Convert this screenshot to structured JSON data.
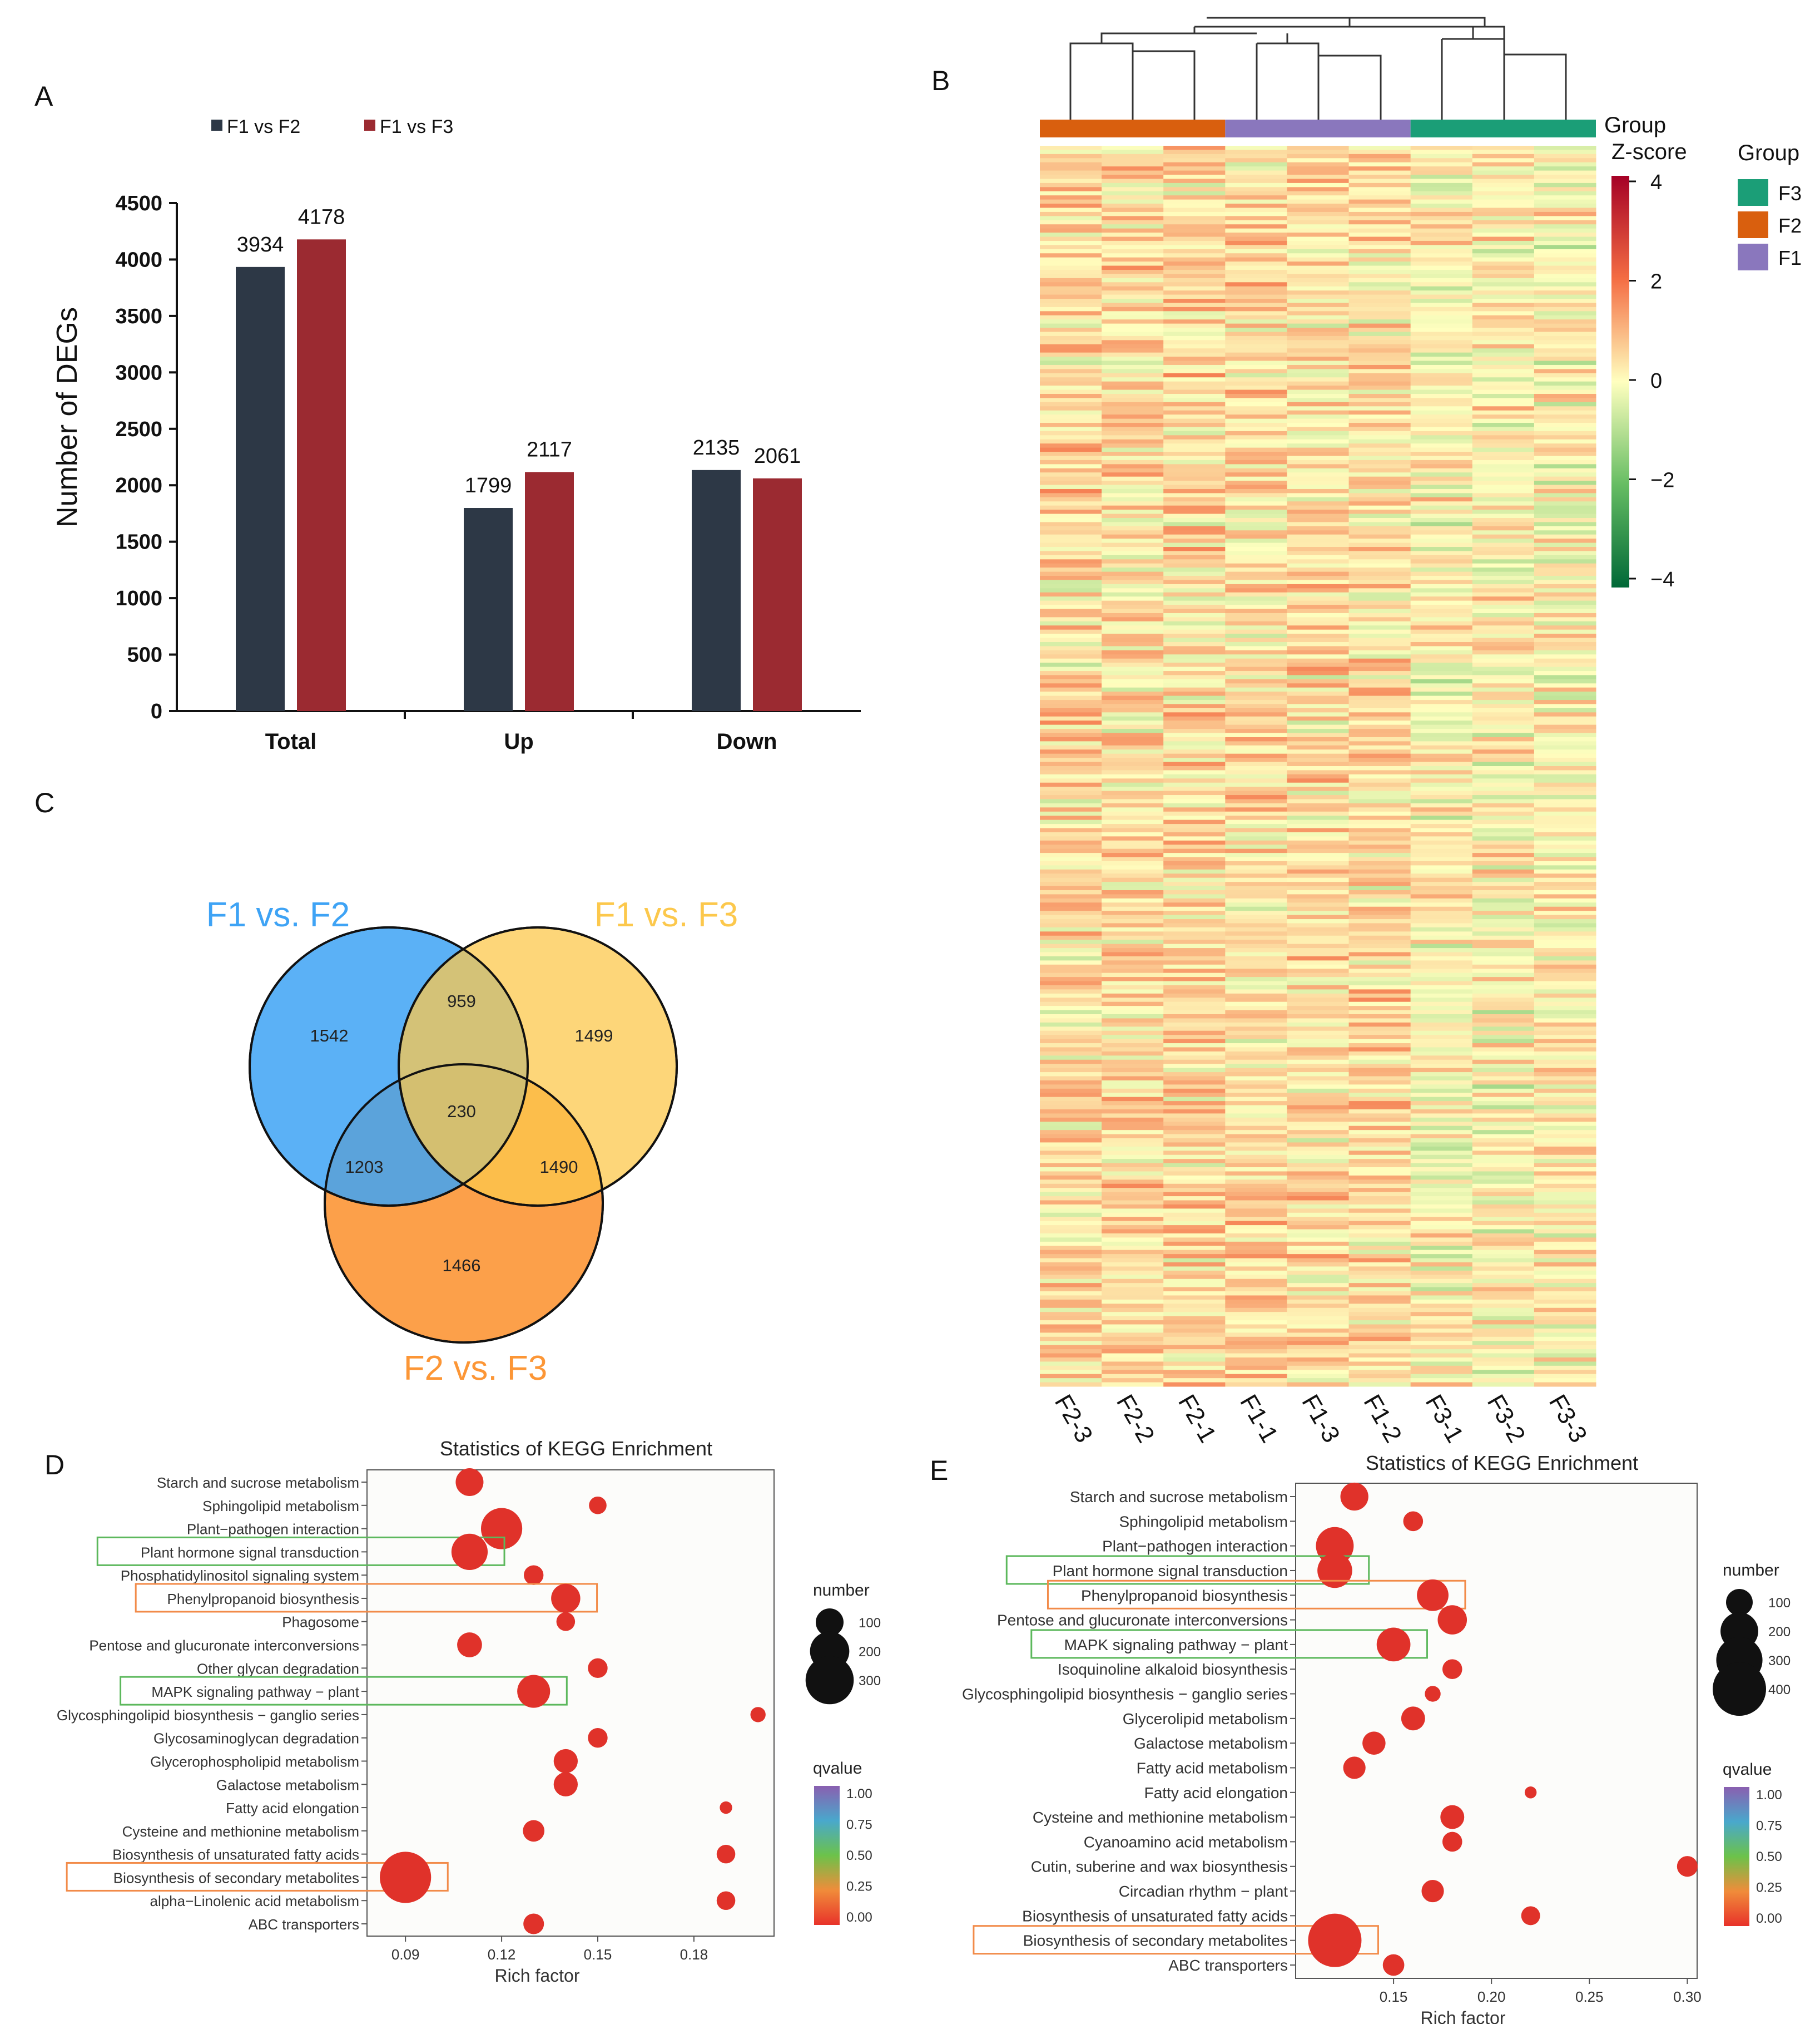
{
  "figure": {
    "panel_labels": [
      "A",
      "B",
      "C",
      "D",
      "E"
    ]
  },
  "colors": {
    "f1f2": "#2d3846",
    "f1f3": "#9b2a31",
    "venn_a": "#3ea3f5",
    "venn_b": "#fcc84c",
    "venn_c": "#fc9636",
    "group_f1": "#8a77bd",
    "group_f2": "#d95f0e",
    "group_f3": "#1b9e77"
  },
  "chart_data": [
    {
      "id": "A",
      "type": "bar",
      "ylabel": "Number of DEGs",
      "categories": [
        "Total",
        "Up",
        "Down"
      ],
      "series": [
        {
          "name": "F1 vs F2",
          "values": [
            3934,
            1799,
            2135
          ]
        },
        {
          "name": "F1 vs F3",
          "values": [
            4178,
            2117,
            2061
          ]
        }
      ],
      "ylim": [
        0,
        4500
      ],
      "yticks": [
        0,
        500,
        1000,
        1500,
        2000,
        2500,
        3000,
        3500,
        4000,
        4500
      ],
      "legend_position": "top"
    },
    {
      "id": "B",
      "type": "heatmap",
      "samples": [
        "F2-3",
        "F2-2",
        "F2-1",
        "F1-1",
        "F1-3",
        "F1-2",
        "F3-1",
        "F3-2",
        "F3-3"
      ],
      "sample_groups": [
        "F2",
        "F2",
        "F2",
        "F1",
        "F1",
        "F1",
        "F3",
        "F3",
        "F3"
      ],
      "group_bar_label": "Group",
      "colorbar_title": "Z-score",
      "colorbar_ticks": [
        "4",
        "2",
        "0",
        "−2",
        "−4"
      ],
      "colorbar_range": [
        -4,
        4
      ],
      "legend_title": "Group",
      "legend_items": [
        "F3",
        "F2",
        "F1"
      ]
    },
    {
      "id": "C",
      "type": "venn",
      "sets": [
        "F1 vs. F2",
        "F1 vs. F3",
        "F2 vs. F3"
      ],
      "regions": {
        "a_only": "1542",
        "ab": "959",
        "b_only": "1499",
        "abc": "230",
        "ac": "1203",
        "bc": "1490",
        "c_only": "1466"
      }
    },
    {
      "id": "D",
      "type": "scatter",
      "title": "Statistics of KEGG Enrichment",
      "xlabel": "Rich factor",
      "xlim": [
        0.078,
        0.205
      ],
      "xticks": [
        "0.09",
        "0.12",
        "0.15",
        "0.18"
      ],
      "size_legend_title": "number",
      "size_legend": [
        100,
        200,
        300
      ],
      "color_legend_title": "qvalue",
      "color_ticks": [
        "1.00",
        "0.75",
        "0.50",
        "0.25",
        "0.00"
      ],
      "pathways": [
        {
          "name": "Starch and sucrose metabolism",
          "x": 0.11,
          "count": 100,
          "box": ""
        },
        {
          "name": "Sphingolipid metabolism",
          "x": 0.15,
          "count": 40,
          "box": ""
        },
        {
          "name": "Plant−pathogen interaction",
          "x": 0.12,
          "count": 220,
          "box": ""
        },
        {
          "name": "Plant hormone signal transduction",
          "x": 0.11,
          "count": 170,
          "box": "green"
        },
        {
          "name": "Phosphatidylinositol signaling system",
          "x": 0.13,
          "count": 50,
          "box": ""
        },
        {
          "name": "Phenylpropanoid biosynthesis",
          "x": 0.14,
          "count": 110,
          "box": "orange"
        },
        {
          "name": "Phagosome",
          "x": 0.14,
          "count": 45,
          "box": ""
        },
        {
          "name": "Pentose and glucuronate interconversions",
          "x": 0.11,
          "count": 80,
          "box": ""
        },
        {
          "name": "Other glycan degradation",
          "x": 0.15,
          "count": 50,
          "box": ""
        },
        {
          "name": "MAPK signaling pathway − plant",
          "x": 0.13,
          "count": 140,
          "box": "green"
        },
        {
          "name": "Glycosphingolipid biosynthesis − ganglio series",
          "x": 0.2,
          "count": 30,
          "box": ""
        },
        {
          "name": "Glycosaminoglycan degradation",
          "x": 0.15,
          "count": 50,
          "box": ""
        },
        {
          "name": "Glycerophospholipid metabolism",
          "x": 0.14,
          "count": 75,
          "box": ""
        },
        {
          "name": "Galactose metabolism",
          "x": 0.14,
          "count": 75,
          "box": ""
        },
        {
          "name": "Fatty acid elongation",
          "x": 0.19,
          "count": 20,
          "box": ""
        },
        {
          "name": "Cysteine and methionine metabolism",
          "x": 0.13,
          "count": 60,
          "box": ""
        },
        {
          "name": "Biosynthesis of unsaturated fatty acids",
          "x": 0.19,
          "count": 45,
          "box": ""
        },
        {
          "name": "Biosynthesis of secondary metabolites",
          "x": 0.09,
          "count": 340,
          "box": "orange"
        },
        {
          "name": "alpha−Linolenic acid metabolism",
          "x": 0.19,
          "count": 45,
          "box": ""
        },
        {
          "name": "ABC transporters",
          "x": 0.13,
          "count": 55,
          "box": ""
        }
      ]
    },
    {
      "id": "E",
      "type": "scatter",
      "title": "Statistics of KEGG Enrichment",
      "xlabel": "Rich factor",
      "xlim": [
        0.1,
        0.305
      ],
      "xticks": [
        "0.15",
        "0.20",
        "0.25",
        "0.30"
      ],
      "size_legend_title": "number",
      "size_legend": [
        100,
        200,
        300,
        400
      ],
      "color_legend_title": "qvalue",
      "color_ticks": [
        "1.00",
        "0.75",
        "0.50",
        "0.25",
        "0.00"
      ],
      "pathways": [
        {
          "name": "Starch and sucrose metabolism",
          "x": 0.13,
          "count": 110,
          "box": ""
        },
        {
          "name": "Sphingolipid metabolism",
          "x": 0.16,
          "count": 55,
          "box": ""
        },
        {
          "name": "Plant−pathogen interaction",
          "x": 0.12,
          "count": 200,
          "box": ""
        },
        {
          "name": "Plant hormone signal transduction",
          "x": 0.12,
          "count": 170,
          "box": "green"
        },
        {
          "name": "Phenylpropanoid biosynthesis",
          "x": 0.17,
          "count": 140,
          "box": "orange"
        },
        {
          "name": "Pentose and glucuronate interconversions",
          "x": 0.18,
          "count": 120,
          "box": ""
        },
        {
          "name": "MAPK signaling pathway − plant",
          "x": 0.15,
          "count": 160,
          "box": "green"
        },
        {
          "name": "Isoquinoline alkaloid biosynthesis",
          "x": 0.18,
          "count": 55,
          "box": ""
        },
        {
          "name": "Glycosphingolipid biosynthesis − ganglio series",
          "x": 0.17,
          "count": 35,
          "box": ""
        },
        {
          "name": "Glycerolipid metabolism",
          "x": 0.16,
          "count": 80,
          "box": ""
        },
        {
          "name": "Galactose metabolism",
          "x": 0.14,
          "count": 75,
          "box": ""
        },
        {
          "name": "Fatty acid metabolism",
          "x": 0.13,
          "count": 70,
          "box": ""
        },
        {
          "name": "Fatty acid elongation",
          "x": 0.22,
          "count": 20,
          "box": ""
        },
        {
          "name": "Cysteine and methionine metabolism",
          "x": 0.18,
          "count": 80,
          "box": ""
        },
        {
          "name": "Cyanoamino acid metabolism",
          "x": 0.18,
          "count": 55,
          "box": ""
        },
        {
          "name": "Cutin, suberine and wax biosynthesis",
          "x": 0.3,
          "count": 60,
          "box": ""
        },
        {
          "name": "Circadian rhythm − plant",
          "x": 0.17,
          "count": 70,
          "box": ""
        },
        {
          "name": "Biosynthesis of unsaturated fatty acids",
          "x": 0.22,
          "count": 50,
          "box": ""
        },
        {
          "name": "Biosynthesis of secondary metabolites",
          "x": 0.12,
          "count": 400,
          "box": "orange"
        },
        {
          "name": "ABC transporters",
          "x": 0.15,
          "count": 65,
          "box": ""
        }
      ]
    }
  ]
}
